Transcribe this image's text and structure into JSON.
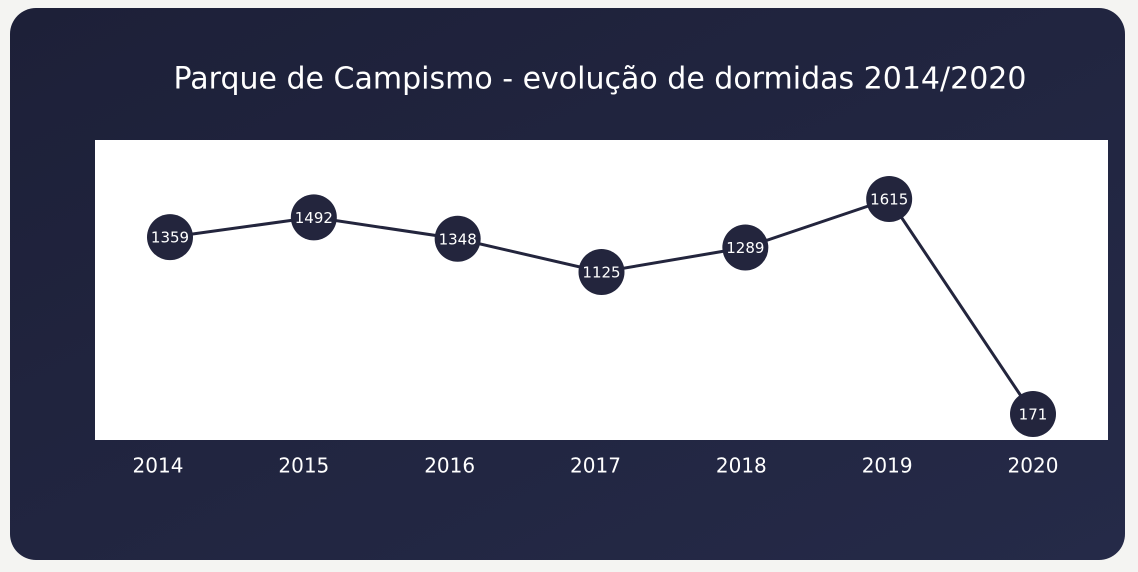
{
  "chart_data": {
    "type": "line",
    "title": "Parque de Campismo - evolução de dormidas 2014/2020",
    "categories": [
      "2014",
      "2015",
      "2016",
      "2017",
      "2018",
      "2019",
      "2020"
    ],
    "values": [
      1359,
      1492,
      1348,
      1125,
      1289,
      1615,
      171
    ],
    "color": "#23253d"
  }
}
